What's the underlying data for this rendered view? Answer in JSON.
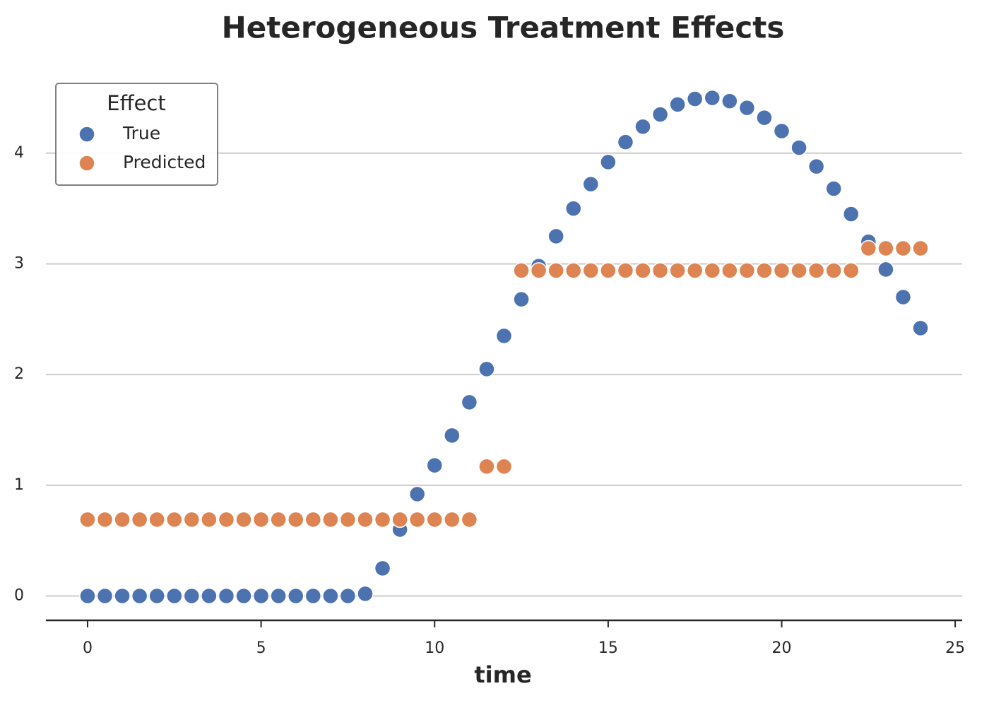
{
  "chart_data": {
    "type": "scatter",
    "title": "Heterogeneous Treatment Effects",
    "xlabel": "time",
    "legend_title": "Effect",
    "legend": "upper left",
    "grid": true,
    "xlim": [
      -1.2,
      25.2
    ],
    "ylim": [
      -0.22,
      4.72
    ],
    "xticks": [
      0,
      5,
      10,
      15,
      20,
      25
    ],
    "yticks": [
      0,
      1,
      2,
      3,
      4
    ],
    "x": [
      0,
      0.5,
      1,
      1.5,
      2,
      2.5,
      3,
      3.5,
      4,
      4.5,
      5,
      5.5,
      6,
      6.5,
      7,
      7.5,
      8,
      8.5,
      9,
      9.5,
      10,
      10.5,
      11,
      11.5,
      12,
      12.5,
      13,
      13.5,
      14,
      14.5,
      15,
      15.5,
      16,
      16.5,
      17,
      17.5,
      18,
      18.5,
      19,
      19.5,
      20,
      20.5,
      21,
      21.5,
      22,
      22.5,
      23,
      23.5,
      24
    ],
    "series": [
      {
        "name": "True",
        "color": "#4c72b0",
        "values": [
          0,
          0,
          0,
          0,
          0,
          0,
          0,
          0,
          0,
          0,
          0,
          0,
          0,
          0,
          0,
          0,
          0.02,
          0.25,
          0.6,
          0.92,
          1.18,
          1.45,
          1.75,
          2.05,
          2.35,
          2.68,
          2.98,
          3.25,
          3.5,
          3.72,
          3.92,
          4.1,
          4.24,
          4.35,
          4.44,
          4.49,
          4.5,
          4.47,
          4.41,
          4.32,
          4.2,
          4.05,
          3.88,
          3.68,
          3.45,
          3.2,
          2.95,
          2.7,
          2.42
        ]
      },
      {
        "name": "Predicted",
        "color": "#dd8452",
        "values": [
          0.69,
          0.69,
          0.69,
          0.69,
          0.69,
          0.69,
          0.69,
          0.69,
          0.69,
          0.69,
          0.69,
          0.69,
          0.69,
          0.69,
          0.69,
          0.69,
          0.69,
          0.69,
          0.69,
          0.69,
          0.69,
          0.69,
          0.69,
          1.17,
          1.17,
          2.94,
          2.94,
          2.94,
          2.94,
          2.94,
          2.94,
          2.94,
          2.94,
          2.94,
          2.94,
          2.94,
          2.94,
          2.94,
          2.94,
          2.94,
          2.94,
          2.94,
          2.94,
          2.94,
          2.94,
          3.14,
          3.14,
          3.14,
          3.14
        ]
      }
    ]
  }
}
